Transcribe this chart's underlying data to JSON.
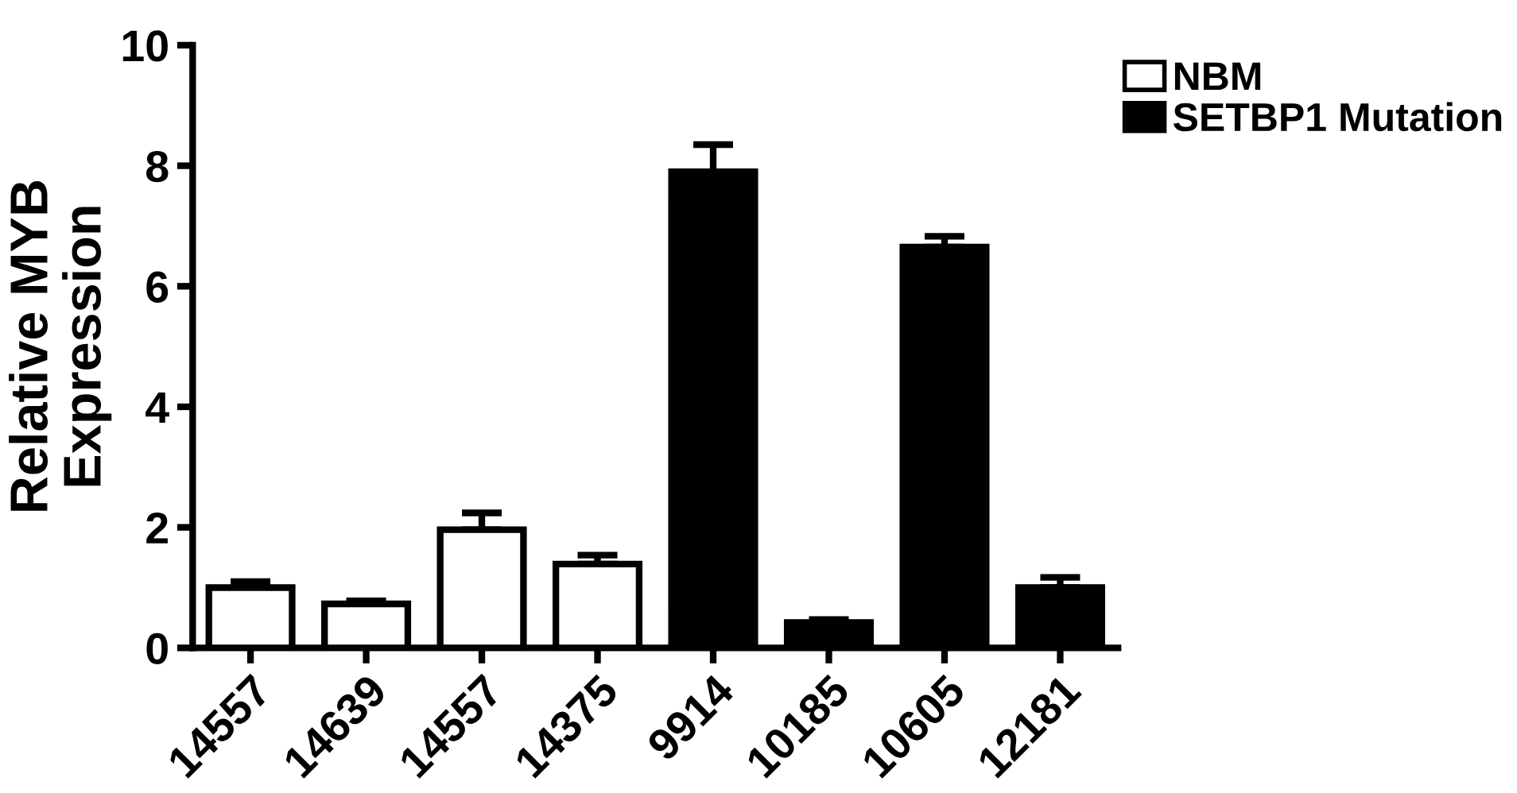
{
  "chart_data": {
    "type": "bar",
    "ylabel": "Relative MYB\nExpression",
    "categories": [
      "14557",
      "14639",
      "14557",
      "14375",
      "9914",
      "10185",
      "10605",
      "12181"
    ],
    "series": [
      {
        "name": "NBM",
        "color": "#ffffff",
        "values": [
          1.0,
          0.73,
          1.96,
          1.39,
          null,
          null,
          null,
          null
        ],
        "errors": [
          0.1,
          0.05,
          0.28,
          0.15,
          null,
          null,
          null,
          null
        ]
      },
      {
        "name": "SETBP1 Mutation",
        "color": "#000000",
        "values": [
          null,
          null,
          null,
          null,
          7.9,
          0.42,
          6.65,
          1.0
        ],
        "errors": [
          null,
          null,
          null,
          null,
          0.45,
          0.05,
          0.18,
          0.17
        ]
      }
    ],
    "ylim": [
      0,
      10
    ],
    "yticks": [
      0,
      2,
      4,
      6,
      8,
      10
    ],
    "grid": false,
    "legend": "top right"
  }
}
